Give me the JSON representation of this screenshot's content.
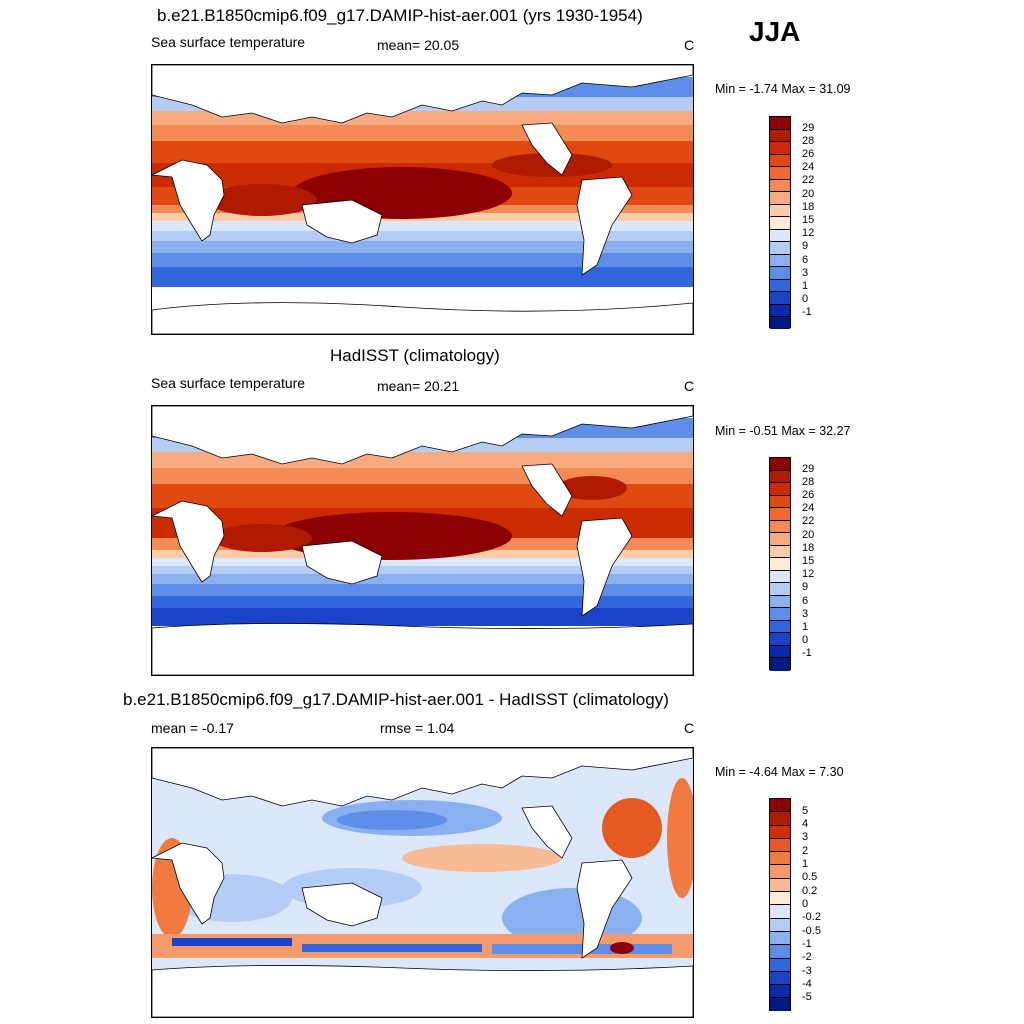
{
  "season": "JJA",
  "panels": [
    {
      "title": "b.e21.B1850cmip6.f09_g17.DAMIP-hist-aer.001 (yrs 1930-1954)",
      "left_text": "Sea surface temperature",
      "mid_text": "mean=  20.05",
      "units": "C",
      "minmax": "Min =  -1.74 Max =  31.09",
      "colorbar_labels": [
        "29",
        "28",
        "26",
        "24",
        "22",
        "20",
        "18",
        "15",
        "12",
        "9",
        "6",
        "3",
        "1",
        "0",
        "-1"
      ]
    },
    {
      "title": "HadISST (climatology)",
      "left_text": "Sea surface temperature",
      "mid_text": "mean=  20.21",
      "units": "C",
      "minmax": "Min =  -0.51 Max =  32.27",
      "colorbar_labels": [
        "29",
        "28",
        "26",
        "24",
        "22",
        "20",
        "18",
        "15",
        "12",
        "9",
        "6",
        "3",
        "1",
        "0",
        "-1"
      ]
    },
    {
      "title": "b.e21.B1850cmip6.f09_g17.DAMIP-hist-aer.001 - HadISST (climatology)",
      "left_text": "mean =  -0.17",
      "mid_text": "rmse =   1.04",
      "units": "C",
      "minmax": "Min =  -4.64 Max =   7.30",
      "colorbar_labels": [
        "5",
        "4",
        "3",
        "2",
        "1",
        "0.5",
        "0.2",
        "0",
        "-0.2",
        "-0.5",
        "-1",
        "-2",
        "-3",
        "-4",
        "-5"
      ]
    }
  ],
  "colors": {
    "sst_scale": [
      "#8b0000",
      "#b01a00",
      "#cc2a00",
      "#e04a10",
      "#ee6a30",
      "#f58a55",
      "#f8aa80",
      "#fbcca8",
      "#fdebd8",
      "#dbe7fb",
      "#b5cdf6",
      "#8bb0f0",
      "#5d8ee8",
      "#3366dd",
      "#1a44c8",
      "#0a28a8",
      "#001a80"
    ],
    "diff_scale": [
      "#8b0000",
      "#b01a00",
      "#d03000",
      "#e45a20",
      "#f07a40",
      "#f59a6a",
      "#f8bb95",
      "#fdebd8",
      "#dbe7fb",
      "#b5cdf6",
      "#8bb0f0",
      "#5d8ee8",
      "#3366dd",
      "#1a44c8",
      "#0a28a8",
      "#001a80"
    ],
    "land": "#ffffff",
    "coast": "#000000"
  }
}
